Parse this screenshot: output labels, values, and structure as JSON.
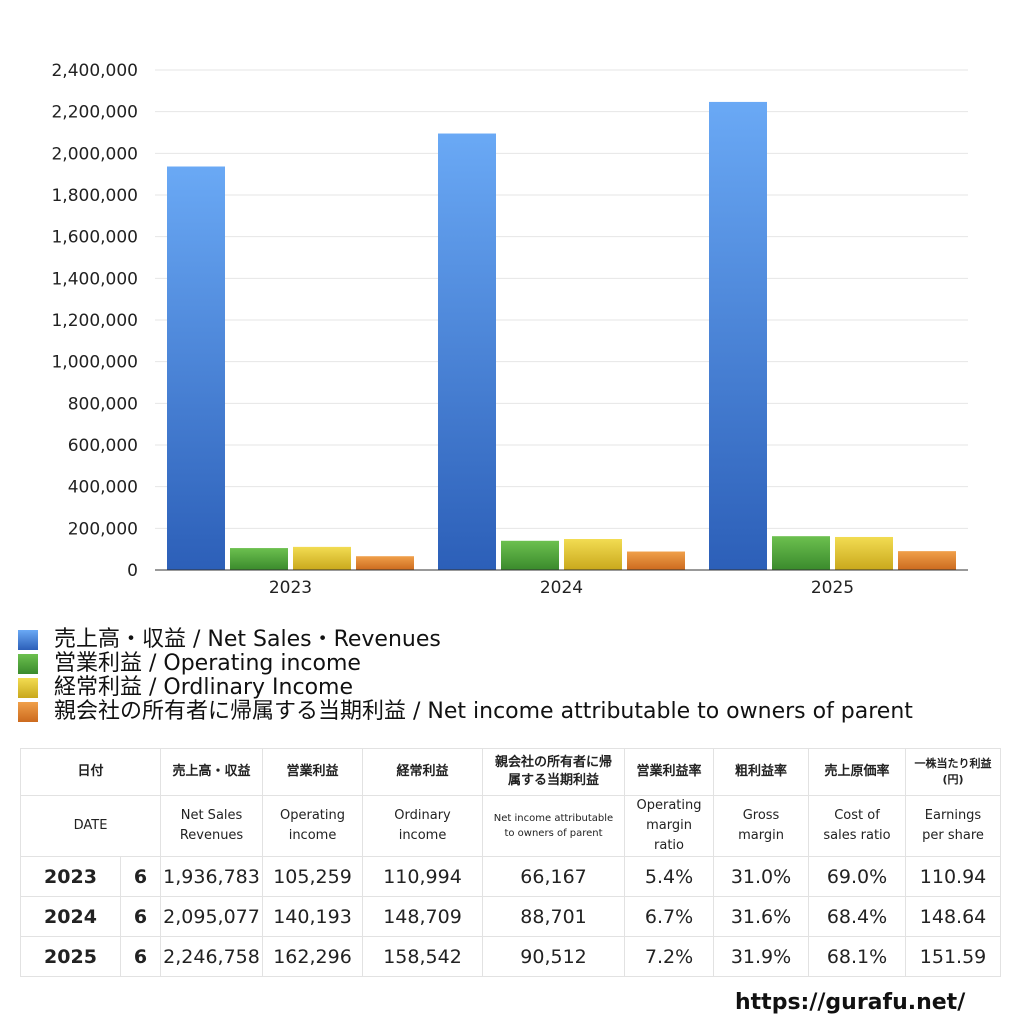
{
  "chart_data": {
    "type": "bar",
    "categories": [
      "2023",
      "2024",
      "2025"
    ],
    "series": [
      {
        "name": "売上高・収益 / Net Sales・Revenues",
        "values": [
          1936783,
          2095077,
          2246758
        ],
        "color": "#3f7ee0"
      },
      {
        "name": "営業利益 / Operating income",
        "values": [
          105259,
          140193,
          162296
        ],
        "color": "#4fa23c"
      },
      {
        "name": "経常利益 / Ordlinary Income",
        "values": [
          110994,
          148709,
          158542
        ],
        "color": "#e2c42c"
      },
      {
        "name": "親会社の所有者に帰属する当期利益 / Net income attributable to owners of parent",
        "values": [
          66167,
          88701,
          90512
        ],
        "color": "#e07c2c"
      }
    ],
    "ylim": [
      0,
      2400000
    ],
    "yticks": [
      "0",
      "200,000",
      "400,000",
      "600,000",
      "800,000",
      "1,000,000",
      "1,200,000",
      "1,400,000",
      "1,600,000",
      "1,800,000",
      "2,000,000",
      "2,200,000",
      "2,400,000"
    ],
    "grid": true,
    "legend_position": "bottom-left"
  },
  "table": {
    "headers_ja": [
      "日付",
      "売上高・収益",
      "営業利益",
      "経常利益",
      "親会社の所有者に帰属する当期利益",
      "営業利益率",
      "粗利益率",
      "売上原価率",
      "一株当たり利益(円)"
    ],
    "headers_en": [
      "DATE",
      "Net Sales Revenues",
      "Operating income",
      "Ordinary income",
      "Net income attributable to owners of parent",
      "Operating margin ratio",
      "Gross margin",
      "Cost of sales ratio",
      "Earnings per share"
    ],
    "rows": [
      {
        "year": "2023",
        "month": "6",
        "sales": "1,936,783",
        "op": "105,259",
        "ord": "110,994",
        "net": "66,167",
        "opm": "5.4%",
        "gm": "31.0%",
        "cos": "69.0%",
        "eps": "110.94"
      },
      {
        "year": "2024",
        "month": "6",
        "sales": "2,095,077",
        "op": "140,193",
        "ord": "148,709",
        "net": "88,701",
        "opm": "6.7%",
        "gm": "31.6%",
        "cos": "68.4%",
        "eps": "148.64"
      },
      {
        "year": "2025",
        "month": "6",
        "sales": "2,246,758",
        "op": "162,296",
        "ord": "158,542",
        "net": "90,512",
        "opm": "7.2%",
        "gm": "31.9%",
        "cos": "68.1%",
        "eps": "151.59"
      }
    ]
  },
  "footer": {
    "url": "https://gurafu.net/"
  }
}
